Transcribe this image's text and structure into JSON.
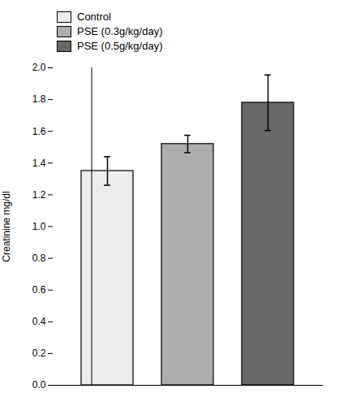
{
  "chart_data": {
    "type": "bar",
    "categories": [
      "Control",
      "PSE (0.3g/kg/day)",
      "PSE (0.5g/kg/day)"
    ],
    "values": [
      1.35,
      1.52,
      1.78
    ],
    "errors": [
      0.09,
      0.055,
      0.175
    ],
    "colors": [
      "#ececec",
      "#adadad",
      "#686868"
    ],
    "ylabel": "Creatinine mg/dl",
    "ylim": [
      0.0,
      2.0
    ],
    "yticks": [
      {
        "value": 0,
        "label": "0.0"
      },
      0.2,
      0.4,
      0.6,
      0.8,
      {
        "value": 1,
        "label": "1.0"
      },
      1.2,
      1.4,
      1.6,
      1.8,
      {
        "value": 2,
        "label": "2.0"
      }
    ],
    "legend": "upper left",
    "tick_labels": "y"
  }
}
